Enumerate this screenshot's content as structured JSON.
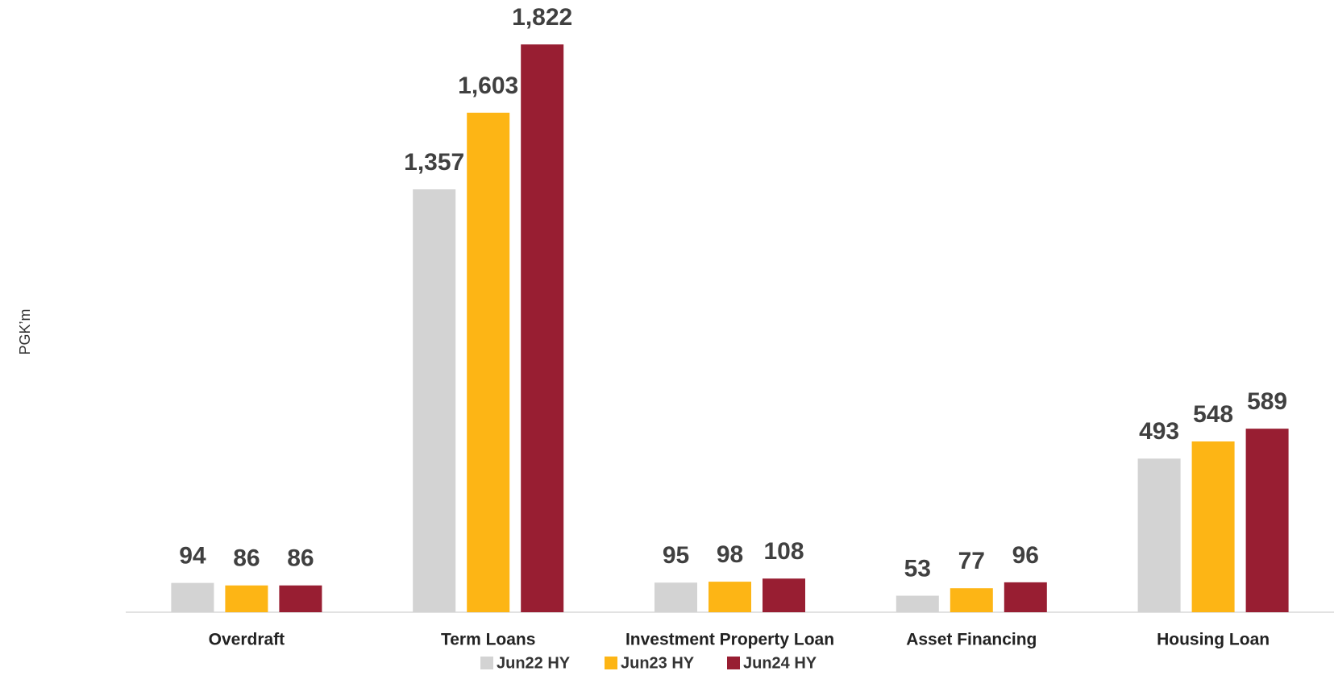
{
  "chart_data": {
    "type": "bar",
    "y_label": "PGK’m",
    "categories": [
      "Overdraft",
      "Term Loans",
      "Investment Property Loan",
      "Asset Financing",
      "Housing Loan"
    ],
    "series": [
      {
        "name": "Jun22 HY",
        "color": "#d3d3d3",
        "values": [
          94,
          1357,
          95,
          53,
          493
        ],
        "value_labels": [
          "94",
          "1,357",
          "95",
          "53",
          "493"
        ]
      },
      {
        "name": "Jun23 HY",
        "color": "#fdb515",
        "values": [
          86,
          1603,
          98,
          77,
          548
        ],
        "value_labels": [
          "86",
          "1,603",
          "98",
          "77",
          "548"
        ]
      },
      {
        "name": "Jun24 HY",
        "color": "#981e32",
        "values": [
          86,
          1822,
          108,
          96,
          589
        ],
        "value_labels": [
          "86",
          "1,822",
          "108",
          "96",
          "589"
        ]
      }
    ],
    "ylim": [
      0,
      1900
    ],
    "legend": "bottom"
  }
}
